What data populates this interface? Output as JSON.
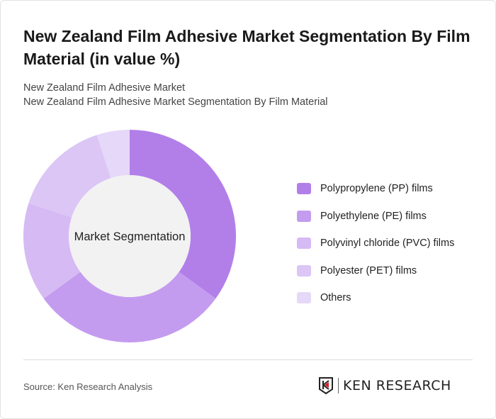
{
  "title": "New Zealand Film Adhesive Market Segmentation By Film Material (in value %)",
  "subtitle1": "New Zealand Film Adhesive Market",
  "subtitle2": "New Zealand Film Adhesive Market Segmentation By Film Material",
  "source": "Source: Ken Research Analysis",
  "logo_text": "KEN RESEARCH",
  "chart_data": {
    "type": "pie",
    "donut": true,
    "center_label": "Market Segmentation",
    "categories": [
      "Polypropylene (PP) films",
      "Polyethylene (PE) films",
      "Polyvinyl chloride (PVC) films",
      "Polyester (PET) films",
      "Others"
    ],
    "values": [
      35,
      30,
      15,
      15,
      5
    ],
    "colors": [
      "#b27fe9",
      "#c49cef",
      "#d6baf4",
      "#dcc6f5",
      "#e6d8f8"
    ],
    "legend_position": "right"
  }
}
